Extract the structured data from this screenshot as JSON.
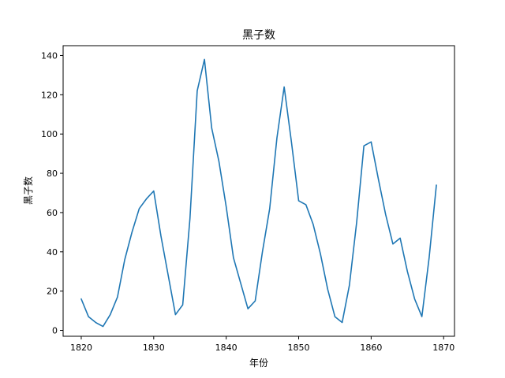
{
  "chart_data": {
    "type": "line",
    "title": "黑子数",
    "xlabel": "年份",
    "ylabel": "黑子数",
    "xlim": [
      1817.5,
      1871.5
    ],
    "ylim": [
      -3,
      145
    ],
    "x_ticks": [
      1820,
      1830,
      1840,
      1850,
      1860,
      1870
    ],
    "y_ticks": [
      0,
      20,
      40,
      60,
      80,
      100,
      120,
      140
    ],
    "grid": false,
    "color": "#1f77b4",
    "series": [
      {
        "x": [
          1820,
          1821,
          1822,
          1823,
          1824,
          1825,
          1826,
          1827,
          1828,
          1829,
          1830,
          1831,
          1832,
          1833,
          1834,
          1835,
          1836,
          1837,
          1838,
          1839,
          1840,
          1841,
          1842,
          1843,
          1844,
          1845,
          1846,
          1847,
          1848,
          1849,
          1850,
          1851,
          1852,
          1853,
          1854,
          1855,
          1856,
          1857,
          1858,
          1859,
          1860,
          1861,
          1862,
          1863,
          1864,
          1865,
          1866,
          1867,
          1868,
          1869
        ],
        "values": [
          16,
          7,
          4,
          2,
          8,
          17,
          36,
          50,
          62,
          67,
          71,
          48,
          28,
          8,
          13,
          57,
          122,
          138,
          103,
          86,
          63,
          37,
          24,
          11,
          15,
          40,
          62,
          98,
          124,
          96,
          66,
          64,
          54,
          39,
          21,
          7,
          4,
          23,
          55,
          94,
          96,
          77,
          59,
          44,
          47,
          30,
          16,
          7,
          37,
          74
        ]
      }
    ]
  }
}
